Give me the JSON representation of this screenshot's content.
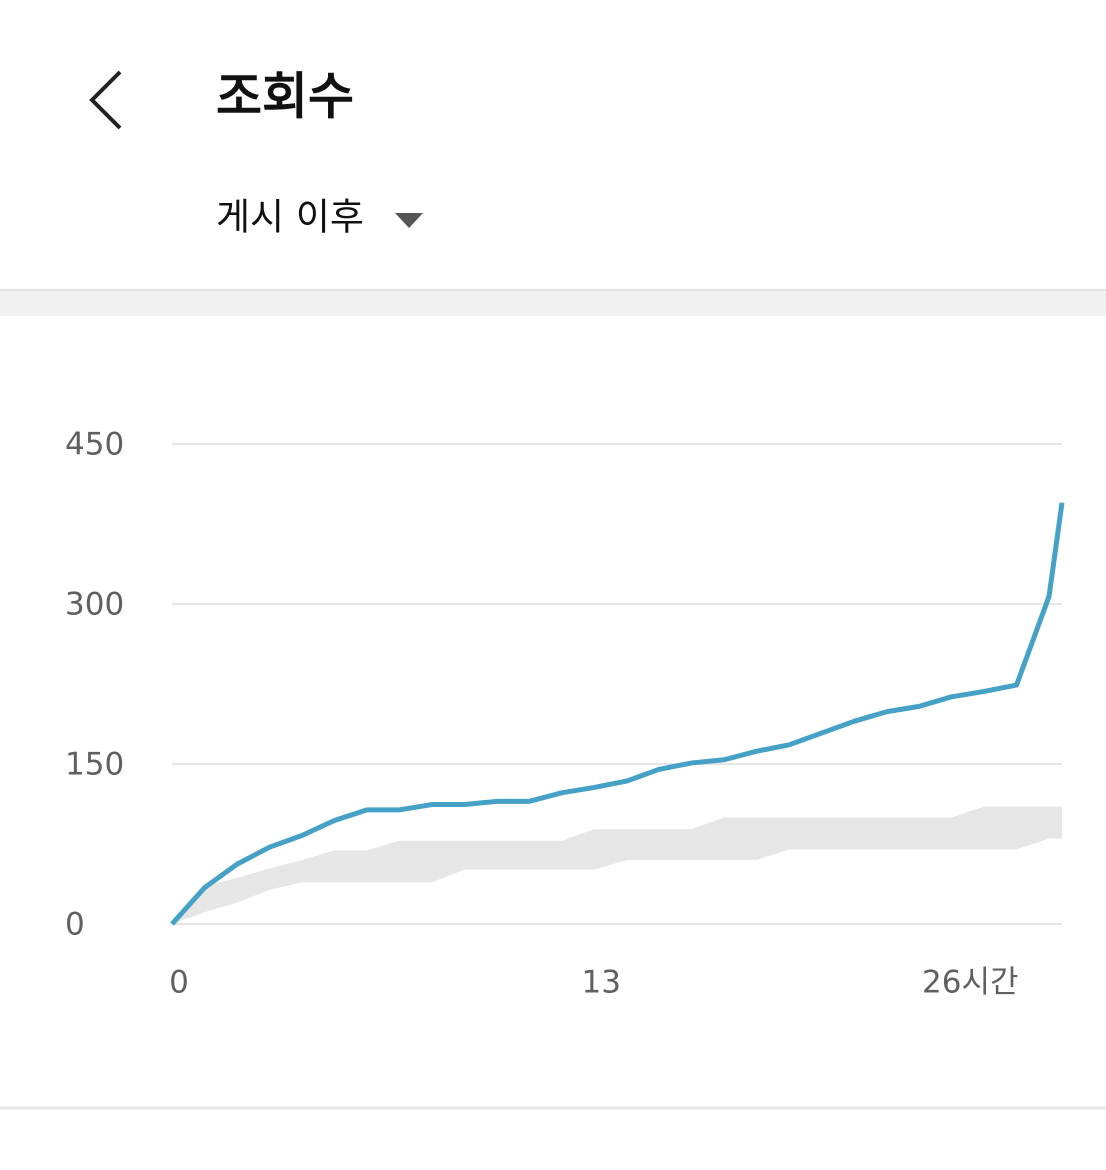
{
  "header": {
    "title": "조회수",
    "filter": "게시 이후"
  },
  "chart_data": {
    "type": "line",
    "x": [
      0,
      1,
      2,
      3,
      4,
      5,
      6,
      7,
      8,
      9,
      10,
      11,
      12,
      13,
      14,
      15,
      16,
      17,
      18,
      19,
      20,
      21,
      22,
      23,
      24,
      25,
      26,
      27,
      27.4
    ],
    "values": [
      0,
      34,
      56,
      72,
      83,
      97,
      107,
      107,
      112,
      112,
      115,
      115,
      123,
      128,
      134,
      145,
      151,
      154,
      162,
      168,
      179,
      190,
      199,
      204,
      213,
      218,
      224,
      307,
      395
    ],
    "color": "#45a1c6",
    "band": {
      "color": "#e6e6e6",
      "upper": [
        0,
        36,
        43,
        52,
        60,
        69,
        69,
        78,
        78,
        78,
        78,
        78,
        78,
        89,
        89,
        89,
        89,
        100,
        100,
        100,
        100,
        100,
        100,
        100,
        100,
        110,
        110,
        110,
        110
      ],
      "lower": [
        0,
        11,
        20,
        32,
        39,
        39,
        39,
        39,
        39,
        51,
        51,
        51,
        51,
        51,
        60,
        60,
        60,
        60,
        60,
        70,
        70,
        70,
        70,
        70,
        70,
        70,
        70,
        80,
        80
      ]
    },
    "xlim": [
      0,
      27.4
    ],
    "ylim": [
      0,
      450
    ],
    "xticks": [
      0,
      13,
      {
        "value": 26,
        "label": "26시간"
      }
    ],
    "yticks": [
      0,
      150,
      300,
      450
    ],
    "grid": true
  }
}
